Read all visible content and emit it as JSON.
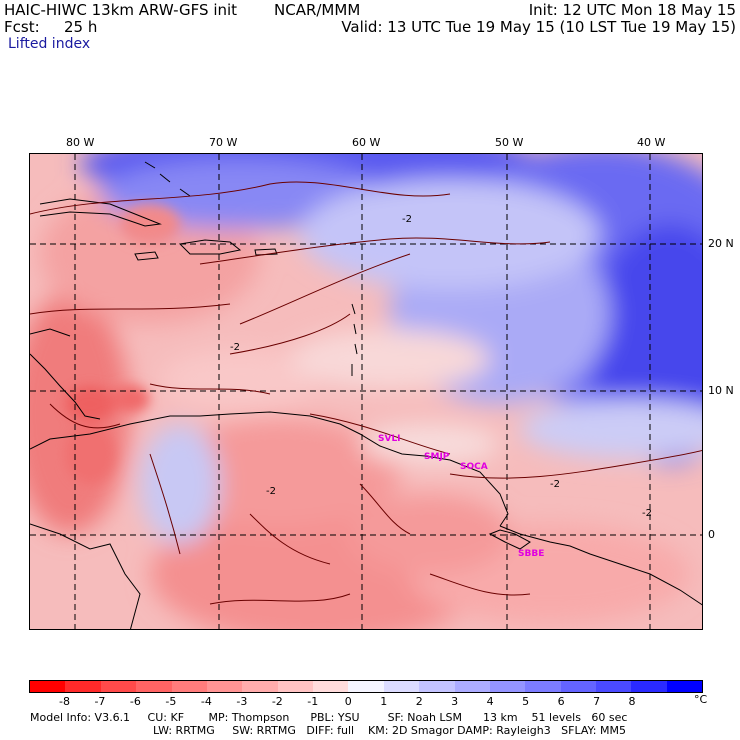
{
  "header": {
    "model": "HAIC-HIWC 13km ARW-GFS init",
    "org": "NCAR/MMM",
    "init": "Init: 12 UTC Mon 18 May 15",
    "fcst_label": "Fcst:",
    "fcst_value": "25 h",
    "valid": "Valid: 13 UTC Tue 19 May 15 (10 LST Tue 19 May 15)",
    "field": "Lifted index"
  },
  "map": {
    "lon_labels": [
      "80 W",
      "70 W",
      "60 W",
      "50 W",
      "40 W"
    ],
    "lat_labels": [
      "20 N",
      "10 N",
      "0"
    ],
    "contour_labels": [
      "-2",
      "-2",
      "-2",
      "-2",
      "-2"
    ],
    "stations": [
      "SVLI",
      "SMJP",
      "SOCA",
      "SBBE"
    ]
  },
  "colorbar": {
    "unit": "°C",
    "tick_labels": [
      "-8",
      "-7",
      "-6",
      "-5",
      "-4",
      "-3",
      "-2",
      "-1",
      "0",
      "1",
      "2",
      "3",
      "4",
      "5",
      "6",
      "7",
      "8"
    ],
    "colors": [
      "#ff0000",
      "#ff2a2a",
      "#ff4a4a",
      "#ff6464",
      "#ff7c7c",
      "#ff9494",
      "#ffacac",
      "#ffc4c4",
      "#ffdcdc",
      "#f5f5ff",
      "#dcdcff",
      "#c4c4ff",
      "#acacff",
      "#9494ff",
      "#7c7cff",
      "#6464ff",
      "#4a4aff",
      "#2a2aff",
      "#0000ff"
    ]
  },
  "footer": {
    "line1": "Model Info: V3.6.1     CU: KF       MP: Thompson      PBL: YSU        SF: Noah LSM      13 km    51 levels   60 sec",
    "line2": "LW: RRTMG     SW: RRTMG   DIFF: full    KM: 2D Smagor DAMP: Rayleigh3   SFLAY: MM5"
  }
}
